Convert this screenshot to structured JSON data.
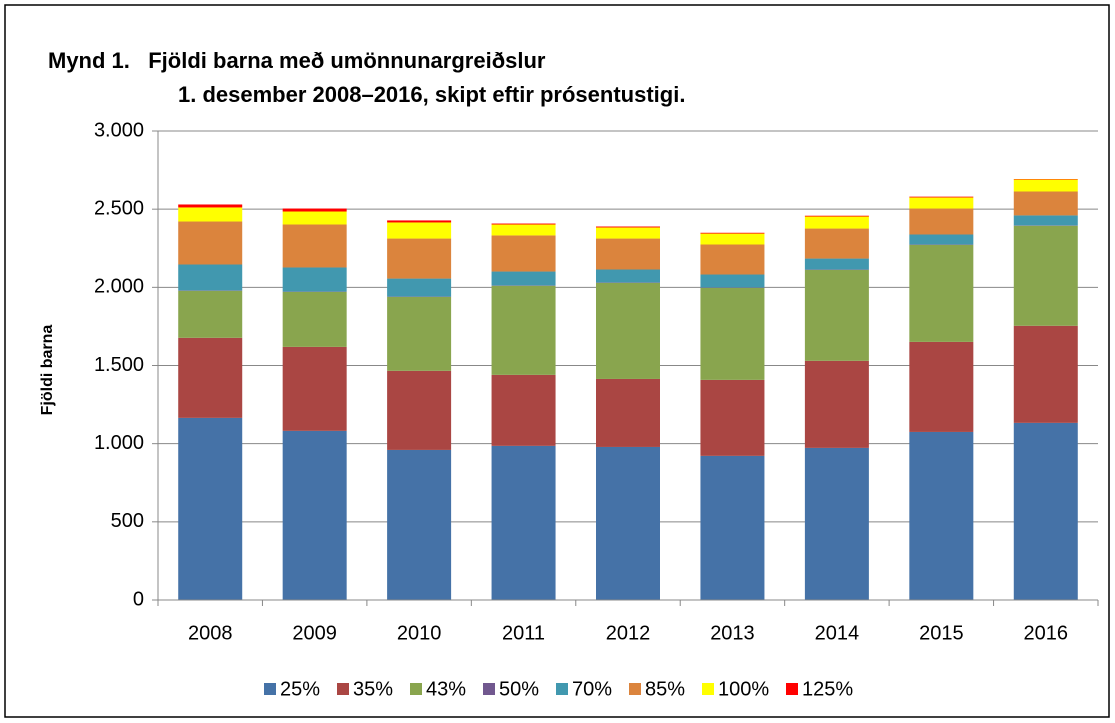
{
  "chart_data": {
    "type": "stacked_bar",
    "title": [
      "Mynd 1.   Fjöldi barna með umönnunargreiðslur",
      "1. desember 2008–2016, skipt eftir prósentustigi."
    ],
    "y_label": "Fjöldi barna",
    "categories": [
      "2008",
      "2009",
      "2010",
      "2011",
      "2012",
      "2013",
      "2014",
      "2015",
      "2016"
    ],
    "series": [
      {
        "name": "25%",
        "color": "#4572a7",
        "values": [
          1165,
          1082,
          960,
          986,
          979,
          922,
          973,
          1075,
          1133
        ]
      },
      {
        "name": "35%",
        "color": "#aa4643",
        "values": [
          512,
          537,
          506,
          454,
          435,
          486,
          557,
          576,
          621
        ]
      },
      {
        "name": "43%",
        "color": "#89a54e",
        "values": [
          301,
          352,
          473,
          570,
          615,
          589,
          582,
          621,
          640
        ]
      },
      {
        "name": "50%",
        "color": "#71588f",
        "values": [
          2,
          2,
          2,
          2,
          2,
          2,
          2,
          2,
          2
        ]
      },
      {
        "name": "70%",
        "color": "#4198af",
        "values": [
          166,
          154,
          115,
          89,
          83,
          83,
          70,
          64,
          64
        ]
      },
      {
        "name": "85%",
        "color": "#db843d",
        "values": [
          275,
          275,
          256,
          231,
          198,
          192,
          192,
          166,
          153
        ]
      },
      {
        "name": "100%",
        "color": "#ffff00",
        "values": [
          90,
          83,
          103,
          70,
          71,
          70,
          77,
          71,
          77
        ]
      },
      {
        "name": "125%",
        "color": "#ff0000",
        "values": [
          19,
          19,
          13,
          6,
          6,
          5,
          5,
          5,
          3
        ]
      }
    ],
    "ylim": [
      0,
      3000
    ],
    "yticks": [
      0,
      500,
      {
        "value": 1000,
        "label": "1.000"
      },
      {
        "value": 1500,
        "label": "1.500"
      },
      {
        "value": 2000,
        "label": "2.000"
      },
      {
        "value": 2500,
        "label": "2.500"
      },
      {
        "value": 3000,
        "label": "3.000"
      }
    ],
    "grid": true,
    "legend": "bottom"
  }
}
